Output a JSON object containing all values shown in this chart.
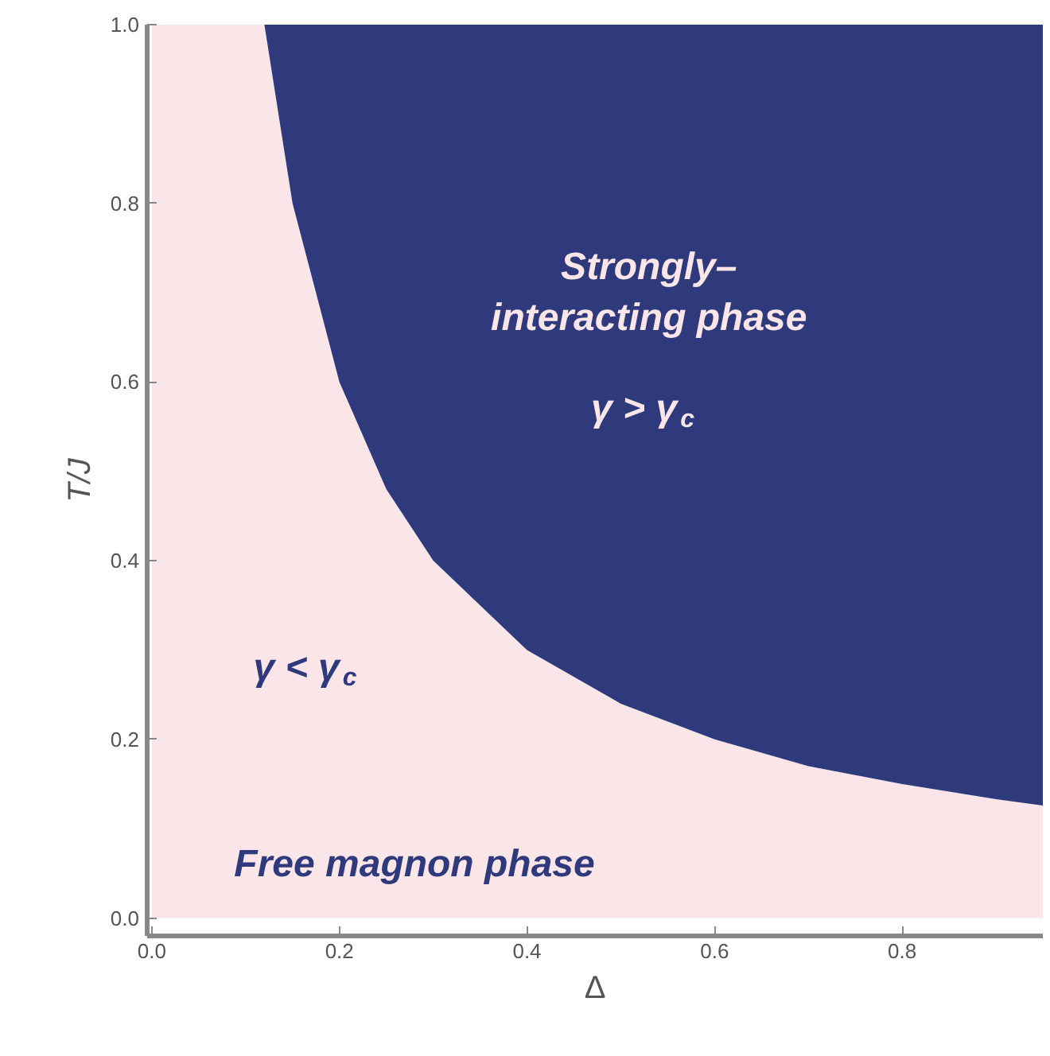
{
  "chart_data": {
    "type": "area",
    "stacked": true,
    "xlabel": "Δ",
    "ylabel": "T/J",
    "x": [
      0,
      0.05,
      0.1,
      0.12,
      0.15,
      0.2,
      0.25,
      0.3,
      0.4,
      0.5,
      0.6,
      0.7,
      0.8,
      0.9,
      0.95
    ],
    "series": [
      {
        "color": "#fae6e8",
        "values": [
          1,
          1,
          1,
          1,
          0.8,
          0.6,
          0.48,
          0.4,
          0.3,
          0.24,
          0.2,
          0.17,
          0.15,
          0.133,
          0.126
        ]
      },
      {
        "color": "#2e3a7c",
        "values": [
          0,
          0,
          0,
          0,
          0.2,
          0.4,
          0.52,
          0.6,
          0.7,
          0.76,
          0.8,
          0.83,
          0.85,
          0.867,
          0.874
        ]
      }
    ],
    "xlim": [
      -0.005,
      0.95
    ],
    "ylim": [
      -0.02,
      1.0
    ],
    "xticks": [
      {
        "value": 0,
        "label": "0.0"
      },
      0.2,
      0.4,
      0.6,
      0.8
    ],
    "yticks": [
      {
        "value": 0,
        "label": "0.0"
      },
      0.2,
      0.4,
      0.6,
      0.8,
      {
        "value": 1,
        "label": "1.0"
      }
    ],
    "grid": false,
    "annotations": [
      "Strongly–\ninteracting phase",
      "γ > γ$_{c}$",
      "γ < γ$_{c}$",
      "Free magnon phase"
    ]
  }
}
